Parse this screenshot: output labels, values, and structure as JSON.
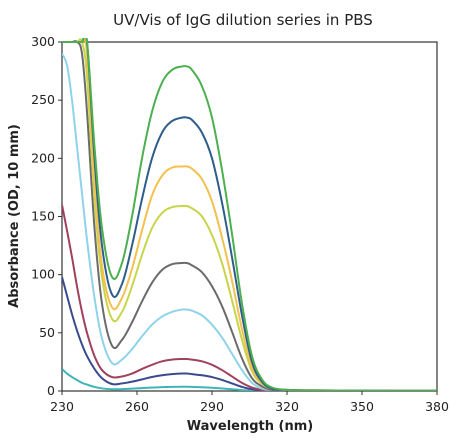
{
  "chart_data": {
    "type": "line",
    "title": "UV/Vis of IgG dilution series in PBS",
    "xlabel": "Wavelength (nm)",
    "ylabel": "Absorbance (OD, 10 mm)",
    "xlim": [
      230,
      380
    ],
    "ylim": [
      0,
      300
    ],
    "xticks": [
      230,
      260,
      290,
      320,
      350,
      380
    ],
    "yticks": [
      0,
      50,
      100,
      150,
      200,
      250,
      300
    ],
    "x": [
      230,
      232,
      234,
      236,
      238,
      240,
      243,
      246,
      250,
      254,
      258,
      262,
      266,
      270,
      274,
      278,
      280,
      282,
      286,
      290,
      294,
      298,
      302,
      306,
      310,
      314,
      320,
      330,
      350,
      380
    ],
    "grid": false,
    "legend": "none",
    "series": [
      {
        "color": "#4caf50",
        "values": [
          300,
          300,
          300,
          300,
          300,
          300,
          210,
          140,
          98,
          110,
          150,
          200,
          240,
          265,
          276,
          279,
          279,
          276,
          262,
          235,
          190,
          135,
          75,
          30,
          10,
          3,
          1,
          0.5,
          0.3,
          0.2
        ]
      },
      {
        "color": "#2e5d8c",
        "values": [
          300,
          300,
          300,
          300,
          300,
          300,
          200,
          125,
          83,
          92,
          125,
          165,
          200,
          222,
          232,
          235,
          235,
          233,
          222,
          200,
          162,
          115,
          65,
          25,
          8,
          2,
          1,
          0.5,
          0.3,
          0.2
        ]
      },
      {
        "color": "#f2c14e",
        "values": [
          300,
          300,
          300,
          300,
          300,
          290,
          180,
          108,
          72,
          80,
          105,
          138,
          168,
          185,
          192,
          193,
          193,
          191,
          182,
          163,
          132,
          95,
          53,
          20,
          7,
          2,
          1,
          0.5,
          0.3,
          0.2
        ]
      },
      {
        "color": "#c8d44a",
        "values": [
          300,
          300,
          300,
          300,
          300,
          270,
          165,
          98,
          62,
          68,
          90,
          117,
          140,
          153,
          158,
          159,
          159,
          157,
          150,
          134,
          110,
          78,
          44,
          17,
          6,
          2,
          1,
          0.5,
          0.3,
          0.2
        ]
      },
      {
        "color": "#6b6b6b",
        "values": [
          300,
          300,
          300,
          300,
          290,
          240,
          140,
          75,
          39,
          44,
          59,
          77,
          93,
          104,
          109,
          110,
          110,
          108,
          102,
          90,
          73,
          51,
          28,
          11,
          4,
          1,
          0.5,
          0.3,
          0.2,
          0.1
        ]
      },
      {
        "color": "#8fd3ea",
        "values": [
          290,
          280,
          250,
          210,
          170,
          130,
          80,
          45,
          24,
          27,
          36,
          47,
          57,
          64,
          68,
          70,
          70,
          69,
          65,
          57,
          46,
          32,
          18,
          7,
          2,
          1,
          0.5,
          0.3,
          0.2,
          0.1
        ]
      },
      {
        "color": "#a0425c",
        "values": [
          160,
          138,
          115,
          90,
          68,
          50,
          30,
          18,
          12,
          12.5,
          15,
          19,
          22.5,
          25.5,
          27,
          27.5,
          27.5,
          27,
          25.5,
          22.5,
          18,
          12.5,
          7,
          3,
          1,
          0.5,
          0.3,
          0.2,
          0.1,
          0.1
        ]
      },
      {
        "color": "#3b4a8c",
        "values": [
          98,
          82,
          66,
          52,
          40,
          30,
          19,
          11,
          6,
          6.5,
          8,
          10,
          12,
          13.5,
          14.5,
          15,
          15,
          14.5,
          13.5,
          12,
          9.5,
          6.5,
          3.5,
          1.5,
          0.5,
          0.3,
          0.2,
          0.1,
          0.1,
          0.1
        ]
      },
      {
        "color": "#3fb5b8",
        "values": [
          19,
          15,
          12,
          9.5,
          7,
          5.5,
          3.5,
          2.2,
          1.5,
          1.6,
          2,
          2.5,
          3,
          3.3,
          3.5,
          3.6,
          3.6,
          3.5,
          3.2,
          2.8,
          2.2,
          1.5,
          0.8,
          0.4,
          0.2,
          0.1,
          0.1,
          0.1,
          0.1,
          0.1
        ]
      }
    ]
  }
}
